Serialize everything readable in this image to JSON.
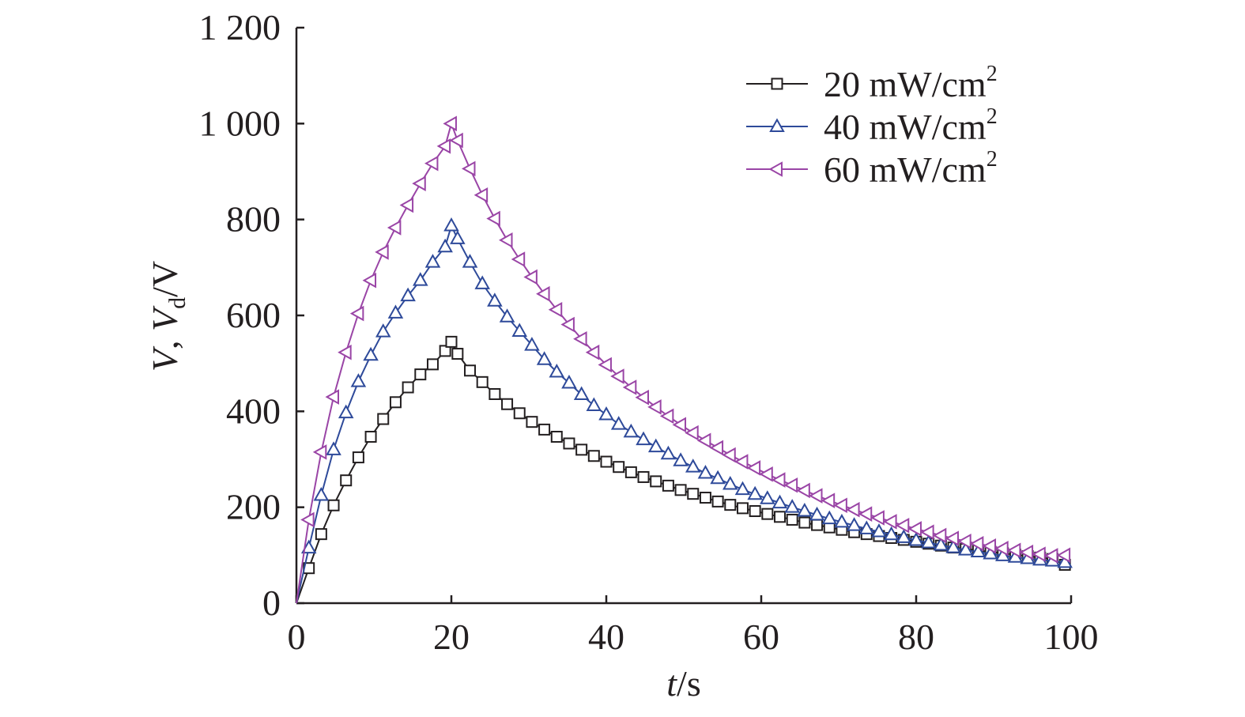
{
  "chart_data": {
    "type": "line",
    "xlabel_italic": "t",
    "xlabel_unit": "/s",
    "ylabel_parts": {
      "v": "V",
      "sep": ", ",
      "vd": "V",
      "sub": "d",
      "unit": "/V"
    },
    "xlim": [
      0,
      100
    ],
    "ylim": [
      0,
      1200
    ],
    "x_ticks": [
      0,
      20,
      40,
      60,
      80,
      100
    ],
    "x_tick_labels": [
      "0",
      "20",
      "40",
      "60",
      "80",
      "100"
    ],
    "y_ticks": [
      0,
      200,
      400,
      600,
      800,
      1000,
      1200
    ],
    "y_tick_labels": [
      "0",
      "200",
      "400",
      "600",
      "800",
      "1 000",
      "1 200"
    ],
    "grid": false,
    "legend_position": "top-right",
    "x": [
      0,
      1.6,
      3.2,
      4.8,
      6.4,
      8,
      9.6,
      11.2,
      12.8,
      14.4,
      16,
      17.6,
      19.2,
      20,
      20.8,
      22.4,
      24,
      25.6,
      27.2,
      28.8,
      30.4,
      32,
      33.6,
      35.2,
      36.8,
      38.4,
      40,
      41.6,
      43.2,
      44.8,
      46.4,
      48,
      49.6,
      51.2,
      52.8,
      54.4,
      56,
      57.6,
      59.2,
      60.8,
      62.4,
      64,
      65.6,
      67.2,
      68.8,
      70.4,
      72,
      73.6,
      75.2,
      76.8,
      78.4,
      80,
      81.6,
      83.2,
      84.8,
      86.4,
      88,
      89.6,
      91.2,
      92.8,
      94.4,
      96,
      97.6,
      99.2
    ],
    "series": [
      {
        "name": "20 mW/cm",
        "name_sup": "2",
        "color": "#231f20",
        "marker": "square",
        "values": [
          0,
          73,
          144,
          204,
          256,
          304,
          347,
          384,
          419,
          450,
          477,
          498,
          526,
          545,
          520,
          485,
          461,
          436,
          415,
          396,
          378,
          362,
          347,
          333,
          320,
          307,
          295,
          284,
          273,
          263,
          254,
          245,
          236,
          228,
          220,
          212,
          205,
          198,
          192,
          186,
          180,
          174,
          168,
          163,
          158,
          153,
          148,
          144,
          140,
          136,
          132,
          128,
          124,
          120,
          116,
          113,
          110,
          107,
          104,
          101,
          98,
          95,
          92,
          80
        ]
      },
      {
        "name": "40 mW/cm",
        "name_sup": "2",
        "color": "#2e4a9a",
        "marker": "triangle-up",
        "values": [
          0,
          115,
          225,
          320,
          397,
          462,
          517,
          566,
          605,
          641,
          673,
          711,
          743,
          787,
          760,
          711,
          666,
          630,
          597,
          567,
          538,
          508,
          482,
          459,
          435,
          412,
          393,
          373,
          357,
          341,
          326,
          311,
          297,
          284,
          271,
          260,
          248,
          237,
          227,
          218,
          209,
          200,
          192,
          184,
          176,
          169,
          162,
          155,
          149,
          143,
          137,
          131,
          126,
          121,
          116,
          111,
          107,
          103,
          99,
          96,
          93,
          90,
          88,
          85
        ]
      },
      {
        "name": "60 mW/cm",
        "name_sup": "2",
        "color": "#9a45a6",
        "marker": "triangle-left",
        "values": [
          0,
          174,
          315,
          430,
          523,
          604,
          673,
          732,
          783,
          830,
          875,
          917,
          953,
          1000,
          965,
          906,
          851,
          802,
          757,
          717,
          680,
          645,
          612,
          581,
          551,
          523,
          497,
          473,
          450,
          429,
          409,
          390,
          372,
          355,
          339,
          324,
          309,
          295,
          282,
          269,
          257,
          246,
          235,
          224,
          214,
          204,
          195,
          186,
          178,
          170,
          162,
          155,
          148,
          141,
          135,
          129,
          124,
          119,
          114,
          110,
          106,
          102,
          99,
          100
        ]
      }
    ]
  }
}
